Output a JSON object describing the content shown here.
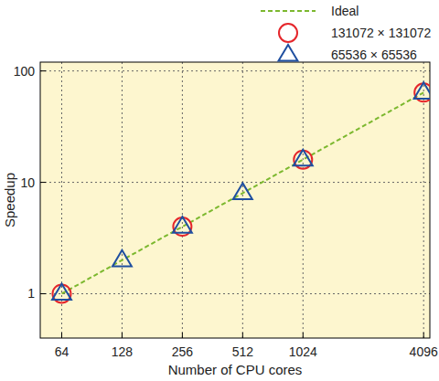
{
  "chart_data": {
    "type": "scatter",
    "x_label": "Number of CPU cores",
    "y_label": "Speedup",
    "log": true,
    "grid": true,
    "legend": "top-right",
    "xlim": [
      50,
      4400
    ],
    "ylim": [
      0.4,
      120
    ],
    "xticks": [
      64,
      128,
      256,
      512,
      1024,
      4096
    ],
    "yticks": [
      1,
      10,
      100
    ],
    "series": [
      {
        "name": "Ideal",
        "type": "line",
        "line_style": "dashed",
        "color": "#7cb82f",
        "x": [
          64,
          4096
        ],
        "values": [
          1,
          64
        ]
      },
      {
        "name": "131072 × 131072",
        "type": "scatter",
        "marker": "circle",
        "color": "#e5262b",
        "x": [
          64,
          256,
          1024,
          4096
        ],
        "values": [
          1,
          4,
          16,
          64
        ]
      },
      {
        "name": "65536 × 65536",
        "type": "scatter",
        "marker": "triangle",
        "color": "#1f4fa0",
        "x": [
          64,
          128,
          256,
          512,
          1024,
          4096
        ],
        "values": [
          1,
          2,
          4,
          8,
          16,
          64
        ]
      }
    ]
  }
}
